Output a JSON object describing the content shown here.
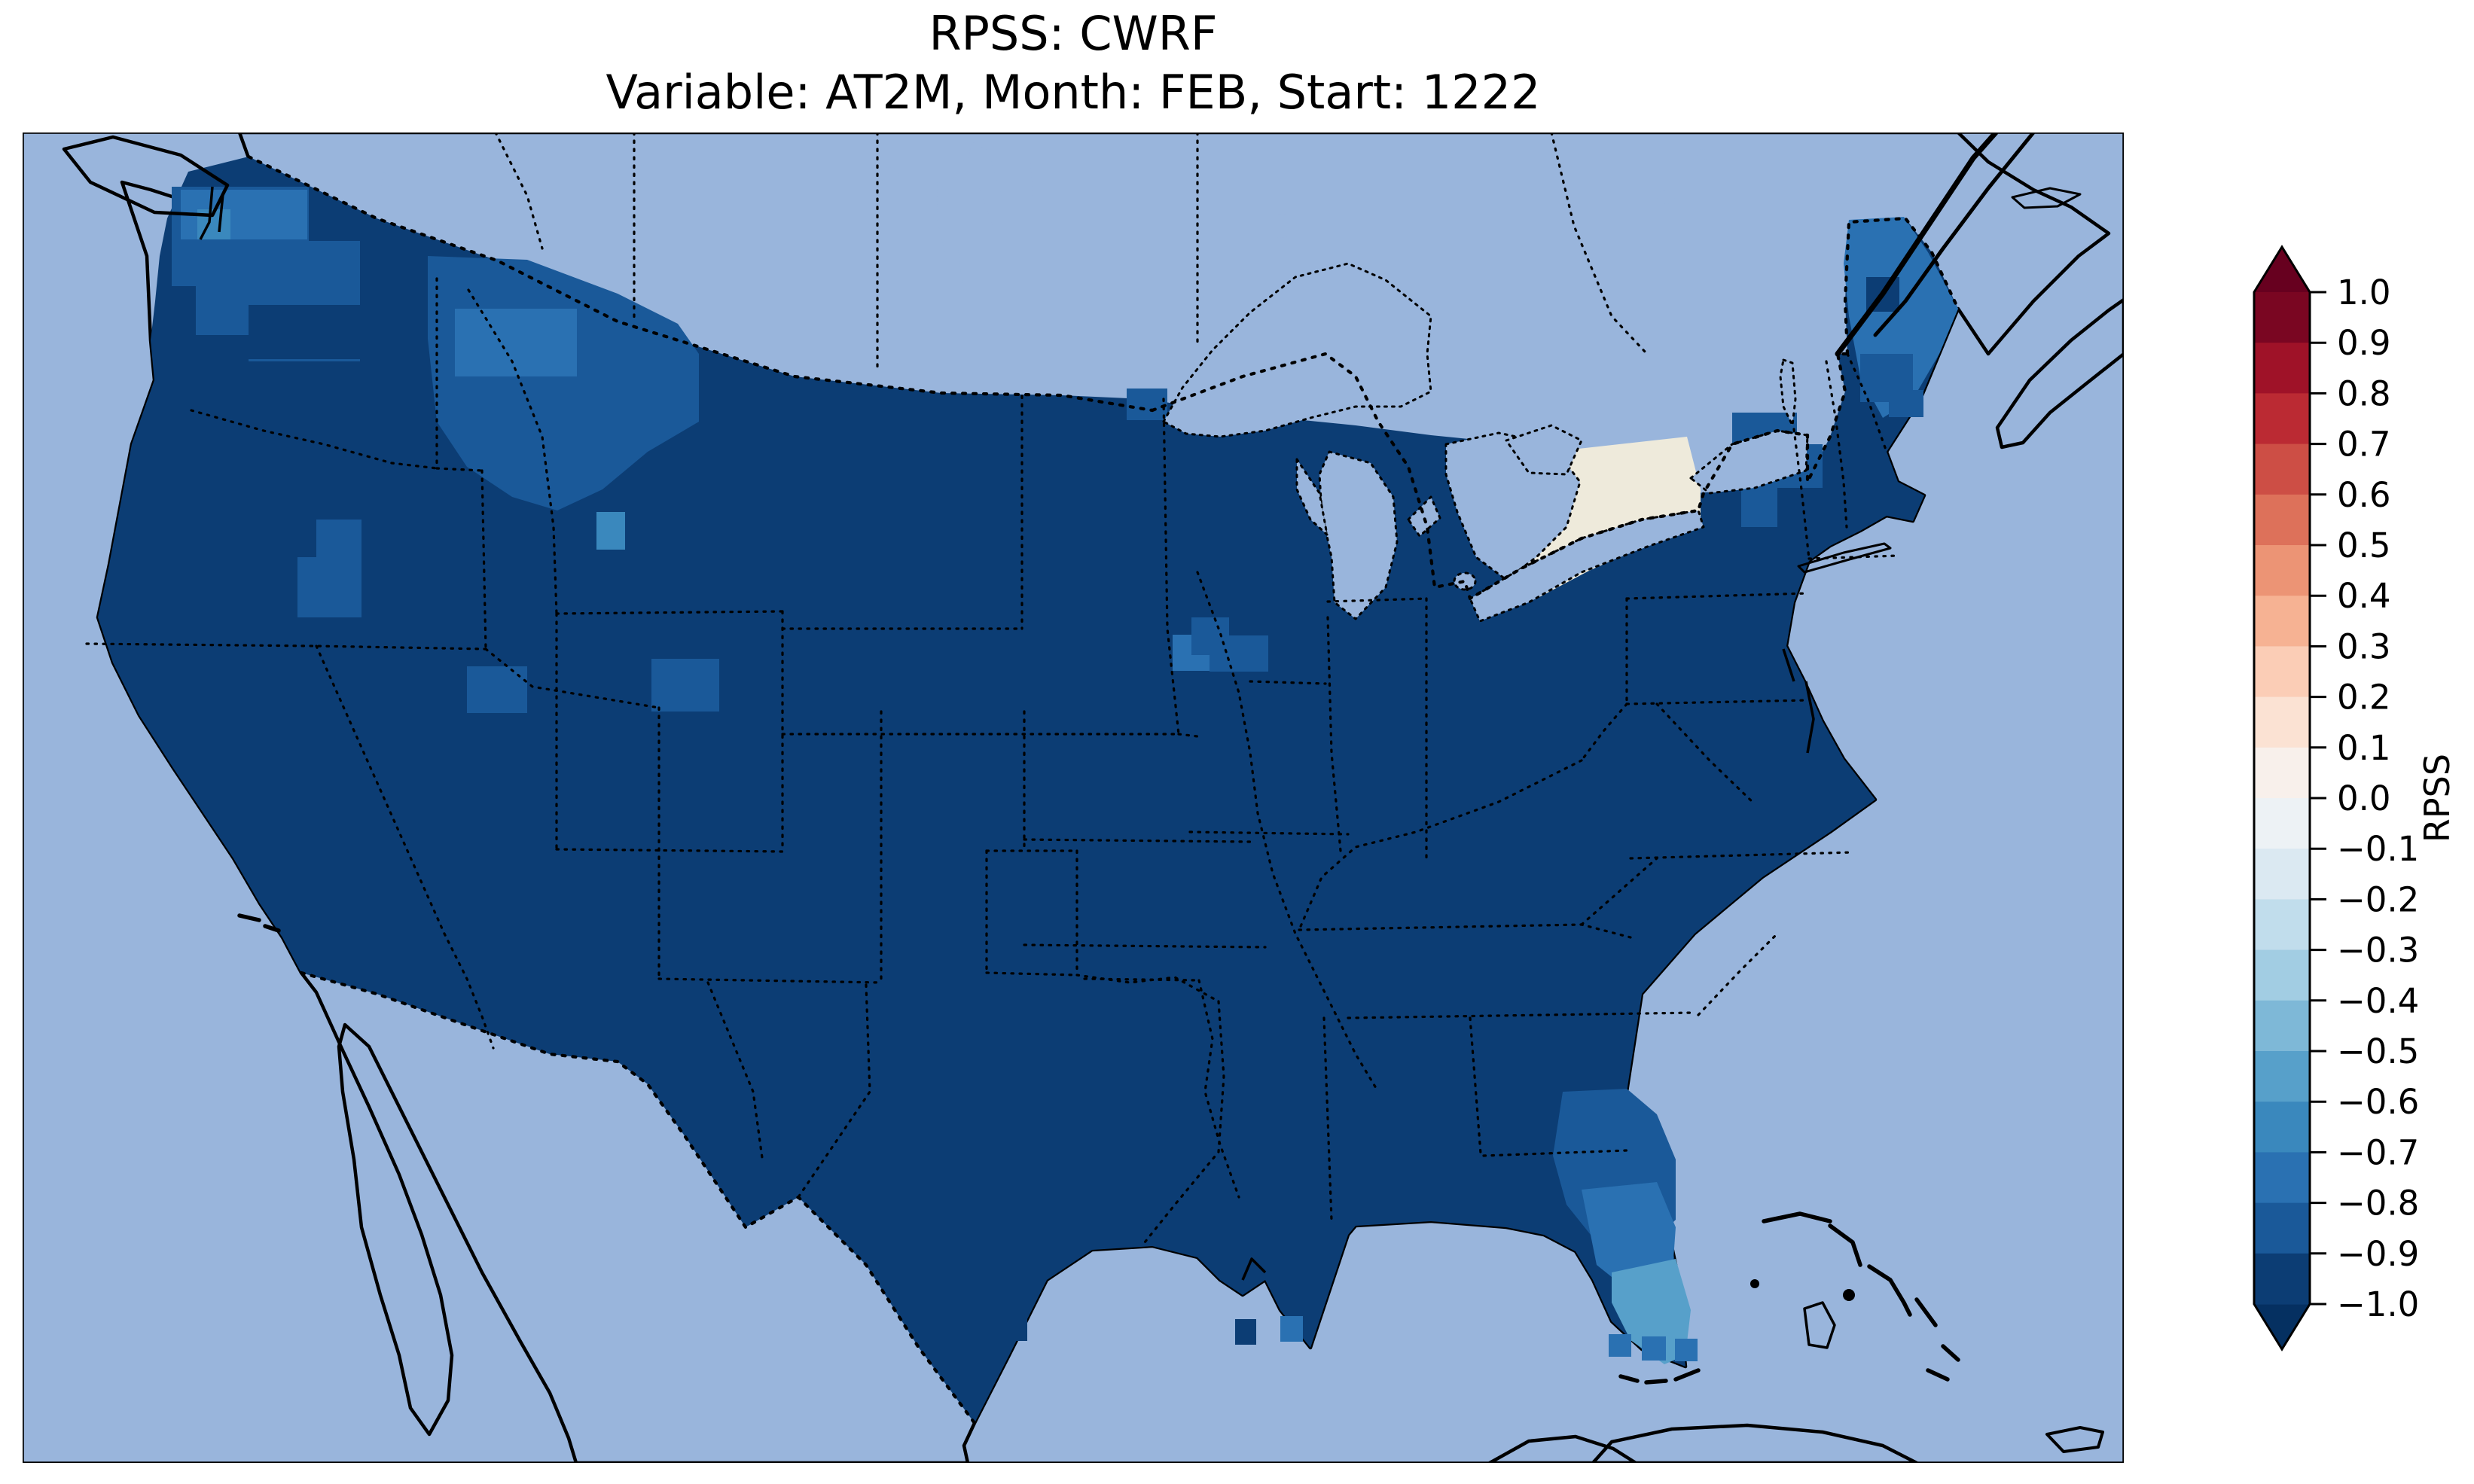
{
  "title": {
    "line1": "RPSS: CWRF",
    "line2": "Variable: AT2M, Month: FEB, Start: 1222"
  },
  "colorbar": {
    "label": "RPSS",
    "ticks": [
      "1.0",
      "0.9",
      "0.8",
      "0.7",
      "0.6",
      "0.5",
      "0.4",
      "0.3",
      "0.2",
      "0.1",
      "0.0",
      "−0.1",
      "−0.2",
      "−0.3",
      "−0.4",
      "−0.5",
      "−0.6",
      "−0.7",
      "−0.8",
      "−0.9",
      "−1.0"
    ],
    "segments_top_to_bottom": [
      "#7a0622",
      "#9f1228",
      "#bb2a33",
      "#cd4e45",
      "#dd715a",
      "#ec9475",
      "#f6b293",
      "#fbcdb6",
      "#fbe2d3",
      "#f8f0eb",
      "#edf2f5",
      "#dbe9f2",
      "#c1ddec",
      "#a2cde3",
      "#7eb8d7",
      "#57a0ca",
      "#3a88bd",
      "#2a71b2",
      "#1a5999",
      "#0c3d74"
    ],
    "extend_max_color": "#67001f",
    "extend_min_color": "#053061"
  },
  "map": {
    "palette": {
      "ocean": "#99b5dc",
      "land": "#eeeadb",
      "m10": "#0c3d74",
      "m09": "#1a5999",
      "m08": "#2a71b2",
      "m07": "#3a88bd",
      "m06": "#57a0ca"
    }
  },
  "chart_data": {
    "type": "heatmap",
    "title": "RPSS: CWRF",
    "subtitle": "Variable: AT2M, Month: FEB, Start: 1222",
    "colorbar_label": "RPSS",
    "value_range": [
      -1.0,
      1.0
    ],
    "level_step": 0.1,
    "colormap": "RdBu discrete (blue = negative, red = positive), extended arrows at both ends",
    "legend_position": "right vertical colorbar",
    "regions": [
      {
        "region": "CONUS interior (vast majority of the US)",
        "rpss_range": [
          -1.0,
          -0.9
        ]
      },
      {
        "region": "Western Washington / Puget Sound cells",
        "rpss_range": [
          -0.8,
          -0.6
        ]
      },
      {
        "region": "Eastern Washington and Idaho panhandle",
        "rpss_range": [
          -0.9,
          -0.8
        ]
      },
      {
        "region": "Western Montana patch",
        "rpss_range": [
          -0.9,
          -0.7
        ]
      },
      {
        "region": "Central Oregon cells",
        "rpss_range": [
          -0.9,
          -0.8
        ]
      },
      {
        "region": "Southeast Idaho / NW Wyoming cells",
        "rpss_range": [
          -0.9,
          -0.8
        ]
      },
      {
        "region": "Eastern South Dakota / SW Minnesota small cluster",
        "rpss_range": [
          -0.9,
          -0.7
        ]
      },
      {
        "region": "Duluth area (west Lake Superior) cells",
        "rpss_range": [
          -0.9,
          -0.8
        ]
      },
      {
        "region": "Northern Maine",
        "rpss_range": [
          -0.8,
          -0.6
        ]
      },
      {
        "region": "Vermont / New Hampshire scattered cells",
        "rpss_range": [
          -0.9,
          -0.8
        ]
      },
      {
        "region": "North Florida / SE Georgia coast",
        "rpss_range": [
          -0.9,
          -0.8
        ]
      },
      {
        "region": "Central Florida",
        "rpss_range": [
          -0.8,
          -0.7
        ]
      },
      {
        "region": "South Florida peninsula",
        "rpss_range": [
          -0.7,
          -0.5
        ]
      },
      {
        "region": "Cells south of Florida Keys",
        "rpss_range": [
          -0.8,
          -0.7
        ]
      },
      {
        "region": "Ocean, Great Lakes, Canada, Mexico, Bahamas, Cuba",
        "rpss_range": null
      }
    ]
  }
}
